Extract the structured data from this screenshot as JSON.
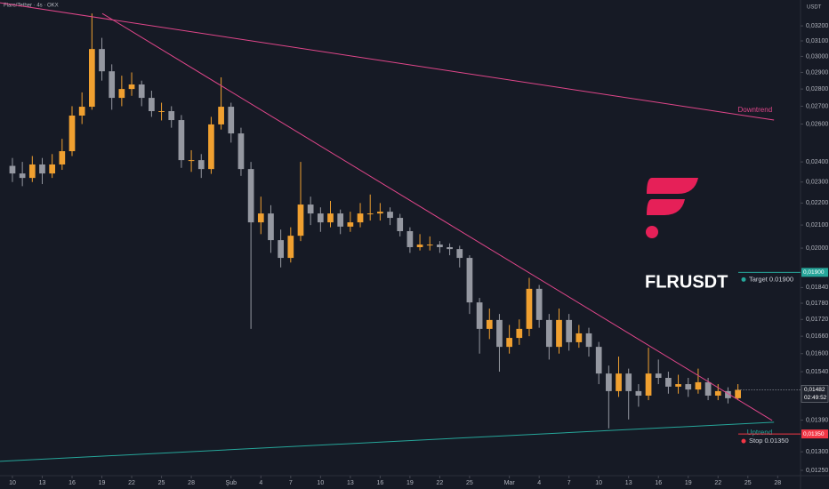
{
  "chart_data": {
    "type": "candlestick",
    "title": "Flare/Tether · 4s · OKX",
    "currency": "USDT",
    "symbol": "FLRUSDT",
    "log_scale": true,
    "grid": false,
    "up_color": "#f0a030",
    "down_color": "#9598a1",
    "xlim": [
      -1.25,
      79.3
    ],
    "xticks": [
      {
        "value": 0,
        "label": "10"
      },
      {
        "value": 3,
        "label": "13"
      },
      {
        "value": 6,
        "label": "16"
      },
      {
        "value": 9,
        "label": "19"
      },
      {
        "value": 12,
        "label": "22"
      },
      {
        "value": 15,
        "label": "25"
      },
      {
        "value": 18,
        "label": "28"
      },
      {
        "value": 22,
        "label": "Şub"
      },
      {
        "value": 25,
        "label": "4"
      },
      {
        "value": 28,
        "label": "7"
      },
      {
        "value": 31,
        "label": "10"
      },
      {
        "value": 34,
        "label": "13"
      },
      {
        "value": 37,
        "label": "16"
      },
      {
        "value": 40,
        "label": "19"
      },
      {
        "value": 43,
        "label": "22"
      },
      {
        "value": 46,
        "label": "25"
      },
      {
        "value": 50,
        "label": "Mar"
      },
      {
        "value": 53,
        "label": "4"
      },
      {
        "value": 56,
        "label": "7"
      },
      {
        "value": 59,
        "label": "10"
      },
      {
        "value": 62,
        "label": "13"
      },
      {
        "value": 65,
        "label": "16"
      },
      {
        "value": 68,
        "label": "19"
      },
      {
        "value": 71,
        "label": "22"
      },
      {
        "value": 74,
        "label": "25"
      },
      {
        "value": 77,
        "label": "28"
      }
    ],
    "ylim": [
      0.01236,
      0.0338
    ],
    "yticks": [
      {
        "value": 0.032,
        "label": "0,03200"
      },
      {
        "value": 0.031,
        "label": "0,03100"
      },
      {
        "value": 0.03,
        "label": "0,03000"
      },
      {
        "value": 0.029,
        "label": "0,02900"
      },
      {
        "value": 0.028,
        "label": "0,02800"
      },
      {
        "value": 0.027,
        "label": "0,02700"
      },
      {
        "value": 0.026,
        "label": "0,02600"
      },
      {
        "value": 0.024,
        "label": "0,02400"
      },
      {
        "value": 0.023,
        "label": "0,02300"
      },
      {
        "value": 0.022,
        "label": "0,02200"
      },
      {
        "value": 0.021,
        "label": "0,02100"
      },
      {
        "value": 0.02,
        "label": "0,02000"
      },
      {
        "value": 0.0184,
        "label": "0,01840"
      },
      {
        "value": 0.0178,
        "label": "0,01780"
      },
      {
        "value": 0.0172,
        "label": "0,01720"
      },
      {
        "value": 0.0166,
        "label": "0,01660"
      },
      {
        "value": 0.016,
        "label": "0,01600"
      },
      {
        "value": 0.0154,
        "label": "0,01540"
      },
      {
        "value": 0.0139,
        "label": "0,01390"
      },
      {
        "value": 0.013,
        "label": "0,01300"
      },
      {
        "value": 0.0125,
        "label": "0,01250"
      }
    ],
    "x": [
      0,
      1,
      2,
      3,
      4,
      5,
      6,
      7,
      8,
      9,
      10,
      11,
      12,
      13,
      14,
      15,
      16,
      17,
      18,
      19,
      20,
      21,
      22,
      23,
      24,
      25,
      26,
      27,
      28,
      29,
      30,
      31,
      32,
      33,
      34,
      35,
      36,
      37,
      38,
      39,
      40,
      41,
      42,
      43,
      44,
      45,
      46,
      47,
      48,
      49,
      50,
      51,
      52,
      53,
      54,
      55,
      56,
      57,
      58,
      59,
      60,
      61,
      62,
      63,
      64,
      65,
      66,
      67,
      68,
      69,
      70,
      71,
      72,
      73
    ],
    "open": [
      0.0238,
      0.02342,
      0.0232,
      0.02387,
      0.02342,
      0.02387,
      0.02455,
      0.02647,
      0.02697,
      0.03047,
      0.02907,
      0.02748,
      0.028,
      0.02827,
      0.02748,
      0.02672,
      0.02672,
      0.02622,
      0.02409,
      0.02409,
      0.02364,
      0.02598,
      0.02697,
      0.02549,
      0.02364,
      0.02112,
      0.02152,
      0.02034,
      0.01959,
      0.02053,
      0.02193,
      0.02152,
      0.02112,
      0.02152,
      0.02093,
      0.02112,
      0.02152,
      0.02152,
      0.0216,
      0.02132,
      0.02073,
      0.02004,
      0.02015,
      0.02015,
      0.02004,
      0.01996,
      0.01959,
      0.01783,
      0.01686,
      0.01718,
      0.01623,
      0.01654,
      0.01686,
      0.01835,
      0.01718,
      0.01623,
      0.01718,
      0.01639,
      0.0167,
      0.01623,
      0.01534,
      0.01478,
      0.01534,
      0.01478,
      0.01464,
      0.01534,
      0.0152,
      0.01492,
      0.015,
      0.01483,
      0.01506,
      0.01464,
      0.01478,
      0.01456
    ],
    "high": [
      0.0242,
      0.024,
      0.0243,
      0.0242,
      0.0244,
      0.0252,
      0.027,
      0.0278,
      0.03285,
      0.0312,
      0.0295,
      0.0288,
      0.029,
      0.0285,
      0.0279,
      0.0272,
      0.027,
      0.0265,
      0.0246,
      0.0244,
      0.0264,
      0.0287,
      0.0272,
      0.0258,
      0.024,
      0.0223,
      0.0219,
      0.0208,
      0.0209,
      0.024,
      0.0223,
      0.0218,
      0.0221,
      0.0217,
      0.0216,
      0.022,
      0.0224,
      0.022,
      0.0218,
      0.0215,
      0.0209,
      0.0206,
      0.0205,
      0.0203,
      0.0202,
      0.0201,
      0.0197,
      0.018,
      0.0176,
      0.0174,
      0.017,
      0.0172,
      0.01878,
      0.0185,
      0.0174,
      0.0176,
      0.0174,
      0.017,
      0.0169,
      0.0164,
      0.0156,
      0.0159,
      0.0155,
      0.015,
      0.0162,
      0.0158,
      0.0154,
      0.0153,
      0.0152,
      0.0155,
      0.0152,
      0.015,
      0.0149,
      0.015
    ],
    "low": [
      0.023,
      0.0228,
      0.023,
      0.0229,
      0.0232,
      0.0236,
      0.0243,
      0.026,
      0.0268,
      0.0285,
      0.0268,
      0.027,
      0.0276,
      0.027,
      0.0264,
      0.0262,
      0.0258,
      0.0237,
      0.0235,
      0.0232,
      0.0234,
      0.0257,
      0.025,
      0.0233,
      0.01686,
      0.0206,
      0.0198,
      0.0192,
      0.0194,
      0.0203,
      0.021,
      0.0207,
      0.0209,
      0.0206,
      0.0207,
      0.0209,
      0.0212,
      0.0212,
      0.021,
      0.0205,
      0.0198,
      0.0199,
      0.0199,
      0.0198,
      0.0197,
      0.0192,
      0.0174,
      0.016,
      0.0165,
      0.0154,
      0.016,
      0.0163,
      0.0166,
      0.0169,
      0.0158,
      0.016,
      0.0161,
      0.0162,
      0.0159,
      0.015,
      0.01366,
      0.0146,
      0.01392,
      0.0143,
      0.0145,
      0.015,
      0.0147,
      0.0147,
      0.0146,
      0.0147,
      0.0145,
      0.0145,
      0.0144,
      0.0145
    ],
    "close": [
      0.02342,
      0.0232,
      0.02387,
      0.02342,
      0.02387,
      0.02455,
      0.02647,
      0.02697,
      0.03047,
      0.02907,
      0.02748,
      0.028,
      0.02827,
      0.02748,
      0.02672,
      0.02672,
      0.02622,
      0.02409,
      0.02409,
      0.02364,
      0.02598,
      0.02697,
      0.02549,
      0.02364,
      0.02112,
      0.02152,
      0.02034,
      0.01959,
      0.02053,
      0.02193,
      0.02152,
      0.02112,
      0.02152,
      0.02093,
      0.02112,
      0.02152,
      0.02152,
      0.0216,
      0.02132,
      0.02073,
      0.02004,
      0.02015,
      0.02015,
      0.02004,
      0.01996,
      0.01959,
      0.01783,
      0.01686,
      0.01718,
      0.01623,
      0.01654,
      0.01686,
      0.01835,
      0.01718,
      0.01623,
      0.01718,
      0.01639,
      0.0167,
      0.01623,
      0.01534,
      0.01478,
      0.01534,
      0.01478,
      0.01464,
      0.01534,
      0.0152,
      0.01492,
      0.015,
      0.01483,
      0.01506,
      0.01464,
      0.01478,
      0.01456,
      0.01482
    ],
    "trendlines": [
      {
        "name": "Downtrend",
        "color": "#e0468a",
        "points": [
          [
            -1.25,
            0.0336
          ],
          [
            76.63,
            0.02622
          ]
        ]
      },
      {
        "color": "#e0468a",
        "points": [
          [
            9.04,
            0.03285
          ],
          [
            76.45,
            0.01389
          ]
        ]
      },
      {
        "name": "Uptrend",
        "color": "#26a69a",
        "points": [
          [
            -1.25,
            0.01274
          ],
          [
            76.63,
            0.01384
          ]
        ]
      }
    ],
    "levels": [
      {
        "name": "Target 0.01900",
        "value": 0.019,
        "label": "0,01900",
        "color": "#26a69a"
      },
      {
        "name": "Stop 0.01350",
        "value": 0.0135,
        "label": "0,01350",
        "color": "#f23645"
      }
    ],
    "last_price": {
      "value": 0.01482,
      "label": "0,01482",
      "countdown": "02:49:52"
    }
  }
}
